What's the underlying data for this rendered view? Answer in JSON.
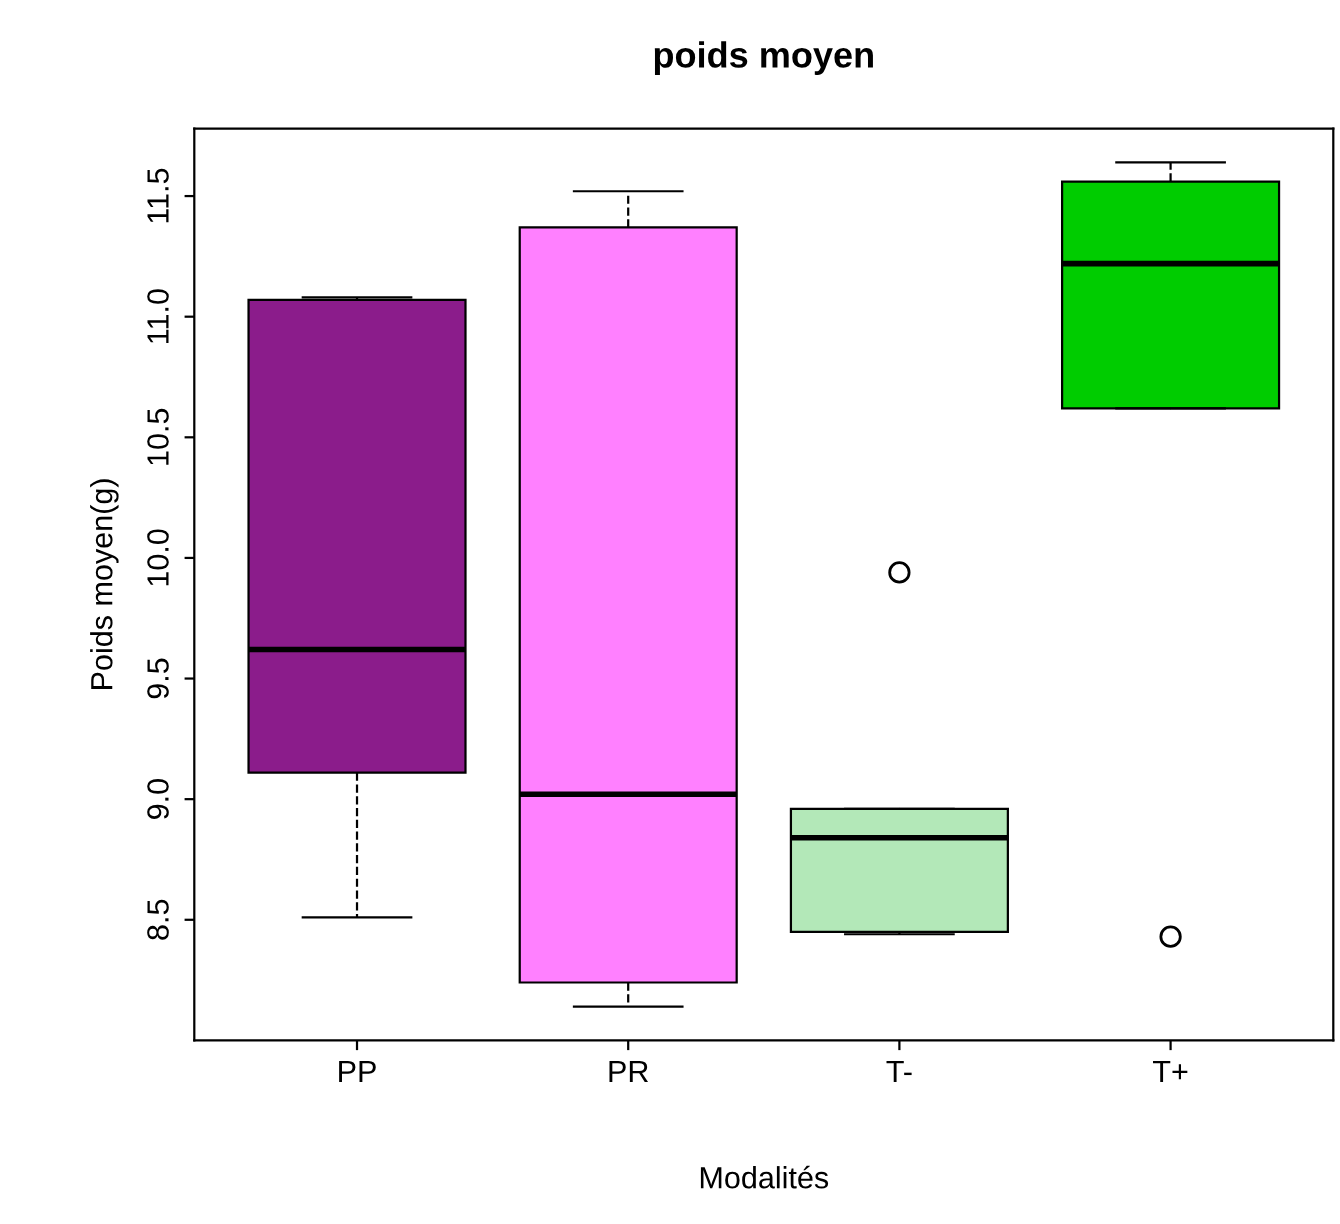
{
  "chart_data": {
    "type": "box",
    "title": "poids moyen",
    "xlabel": "Modalités",
    "ylabel": "Poids moyen(g)",
    "categories": [
      "PP",
      "PR",
      "T-",
      "T+"
    ],
    "colors": [
      "#8b1c8b",
      "#ff80ff",
      "#b3e8b8",
      "#00cc00"
    ],
    "boxes": [
      {
        "low": 8.51,
        "q1": 9.11,
        "median": 9.62,
        "q3": 11.07,
        "high": 11.08
      },
      {
        "low": 8.14,
        "q1": 8.24,
        "median": 9.02,
        "q3": 11.37,
        "high": 11.52
      },
      {
        "low": 8.44,
        "q1": 8.45,
        "median": 8.84,
        "q3": 8.96,
        "high": 8.96,
        "outliers": [
          9.94
        ]
      },
      {
        "low": 10.62,
        "q1": 10.62,
        "median": 11.22,
        "q3": 11.56,
        "high": 11.64,
        "outliers": [
          8.43
        ]
      }
    ],
    "ylim": [
      8.0,
      11.78
    ],
    "yticks": [
      8.5,
      {
        "value": 9,
        "label": "9.0"
      },
      9.5,
      {
        "value": 10,
        "label": "10.0"
      },
      10.5,
      {
        "value": 11,
        "label": "11.0"
      },
      11.5
    ],
    "grid": false
  }
}
